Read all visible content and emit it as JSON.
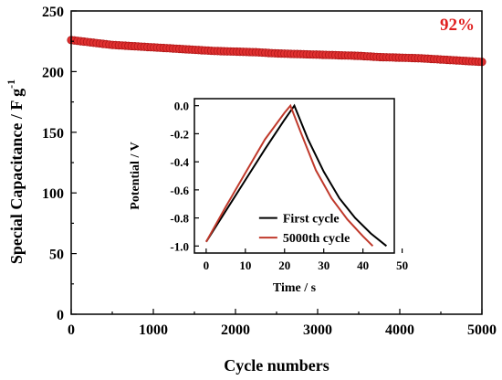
{
  "chart_data": [
    {
      "type": "scatter",
      "title": "",
      "xlabel": "Cycle numbers",
      "ylabel": "Special Capacitance / F g",
      "ylabel_superscript": "-1",
      "xlim": [
        0,
        5000
      ],
      "ylim": [
        0,
        250
      ],
      "xticks": [
        0,
        1000,
        2000,
        3000,
        4000,
        5000
      ],
      "yticks": [
        0,
        50,
        100,
        150,
        200,
        250
      ],
      "annotation": "92%",
      "annotation_color": "#e02020",
      "series": [
        {
          "color": "#e03030",
          "x": [
            0,
            250,
            500,
            750,
            1000,
            1250,
            1500,
            1750,
            2000,
            2250,
            2500,
            2750,
            3000,
            3250,
            3500,
            3750,
            4000,
            4250,
            4500,
            4750,
            5000
          ],
          "y": [
            226,
            224,
            222,
            221,
            220,
            219,
            218,
            217,
            216.5,
            216,
            215,
            214.5,
            214,
            213.5,
            213,
            212,
            211.5,
            211,
            210,
            209,
            208
          ]
        }
      ],
      "grid": false
    },
    {
      "type": "line",
      "title": "",
      "xlabel": "Time / s",
      "ylabel": "Potential / V",
      "xlim": [
        -3,
        48
      ],
      "ylim": [
        -1.05,
        0.05
      ],
      "xticks": [
        0,
        10,
        20,
        30,
        40,
        50
      ],
      "yticks": [
        0.0,
        -0.2,
        -0.4,
        -0.6,
        -0.8,
        -1.0
      ],
      "ytick_labels": [
        "0.0",
        "-0.2",
        "-0.4",
        "-0.6",
        "-0.8",
        "-1.0"
      ],
      "legend_position": "bottom-right",
      "series": [
        {
          "name": "First cycle",
          "color": "#000000",
          "x": [
            0,
            5,
            10,
            15,
            20,
            22.5,
            26,
            30,
            34,
            38,
            42,
            46
          ],
          "y": [
            -0.97,
            -0.75,
            -0.53,
            -0.31,
            -0.1,
            0.0,
            -0.24,
            -0.47,
            -0.66,
            -0.8,
            -0.91,
            -1.0
          ]
        },
        {
          "name": "5000th cycle",
          "color": "#c0392b",
          "x": [
            0,
            5,
            10,
            15,
            20,
            21.5,
            24,
            28,
            32,
            36,
            40,
            42.5
          ],
          "y": [
            -0.97,
            -0.72,
            -0.48,
            -0.24,
            -0.05,
            0.0,
            -0.18,
            -0.46,
            -0.66,
            -0.81,
            -0.93,
            -1.0
          ]
        }
      ]
    }
  ]
}
